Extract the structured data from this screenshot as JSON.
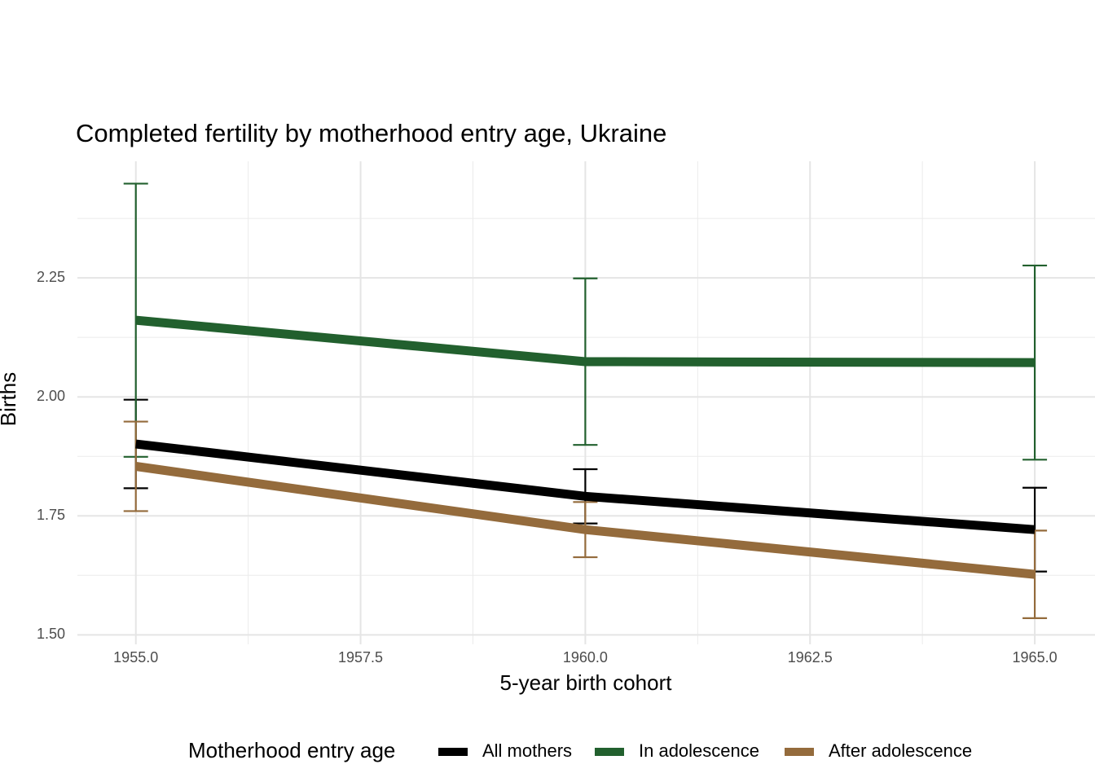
{
  "chart_data": {
    "type": "line",
    "title": "Completed fertility by motherhood entry age,  Ukraine",
    "x_label": "5-year birth cohort",
    "y_label": "Births",
    "legend_title": "Motherhood entry age",
    "legend_position": "bottom",
    "x": [
      1955,
      1960,
      1965
    ],
    "series": [
      {
        "name": "All mothers",
        "color": "#000000",
        "values": [
          1.901,
          1.791,
          1.721
        ],
        "errors": [
          0.093,
          0.057,
          0.088
        ]
      },
      {
        "name": "In adolescence",
        "color": "#22602e",
        "values": [
          2.161,
          2.074,
          2.072
        ],
        "errors": [
          0.287,
          0.175,
          0.204
        ]
      },
      {
        "name": "After adolescence",
        "color": "#946b3c",
        "values": [
          1.854,
          1.721,
          1.627
        ],
        "errors": [
          0.094,
          0.058,
          0.092
        ]
      }
    ],
    "xlim": [
      1954.35,
      1965.67
    ],
    "ylim": [
      1.48,
      2.495
    ],
    "xticks": [
      {
        "value": 1955,
        "label": "1955.0"
      },
      {
        "value": 1957.5,
        "label": "1957.5"
      },
      {
        "value": 1960,
        "label": "1960.0"
      },
      {
        "value": 1962.5,
        "label": "1962.5"
      },
      {
        "value": 1965,
        "label": "1965.0"
      }
    ],
    "yticks": [
      {
        "value": 1.5,
        "label": "1.50"
      },
      1.75,
      {
        "value": 2,
        "label": "2.00"
      },
      2.25
    ],
    "xticks_minor": [
      1956.25,
      1958.75,
      1961.25,
      1963.75
    ],
    "yticks_minor": [
      1.625,
      1.875,
      2.125,
      2.375
    ],
    "grid": true
  }
}
